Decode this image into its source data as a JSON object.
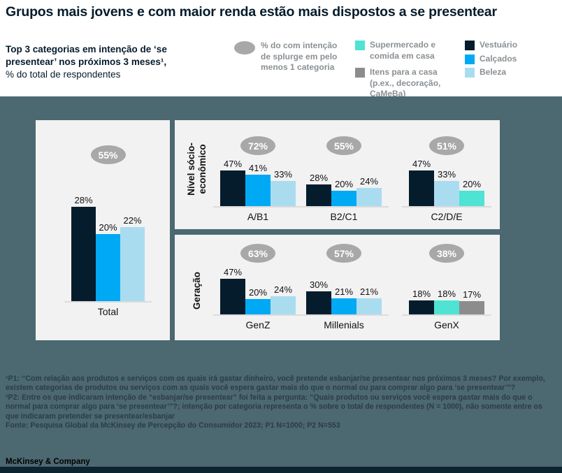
{
  "title": "Grupos mais jovens e com maior renda estão mais dispostos a se presentear",
  "subtitle": {
    "bold": "Top 3 categorias em intenção de ‘se presentear’ nos próximos 3 meses¹,",
    "regular": "% do total de respondentes"
  },
  "palette": {
    "vestuario": "#051c2c",
    "calcados": "#00a9f4",
    "beleza": "#aadcf0",
    "supermercado": "#4fe3d3",
    "itens_casa": "#8c8c8c",
    "bubble": "#a8a8a8",
    "backdrop": "#4c6871",
    "panel": "#f2f2f2"
  },
  "legend": {
    "bubble_label": "% do com intenção de splurge em pelo menos 1 categoria",
    "items": [
      {
        "key": "supermercado",
        "label": "Supermercado e comida em casa"
      },
      {
        "key": "itens_casa",
        "label": "Itens para a casa (p.ex., decoração, CaMeBa)"
      },
      {
        "key": "vestuario",
        "label": "Vestuário"
      },
      {
        "key": "calcados",
        "label": "Calçados"
      },
      {
        "key": "beleza",
        "label": "Beleza"
      }
    ]
  },
  "chart_data": {
    "type": "bar",
    "unit": "%",
    "value_range": [
      0,
      50
    ],
    "grid": false,
    "panels": [
      {
        "name": "total",
        "axis_label": "",
        "groups": [
          {
            "label": "Total",
            "bubble": "55%",
            "bars": [
              {
                "category": "vestuario",
                "value": 28,
                "label": "28%"
              },
              {
                "category": "calcados",
                "value": 20,
                "label": "20%"
              },
              {
                "category": "beleza",
                "value": 22,
                "label": "22%"
              }
            ]
          }
        ]
      },
      {
        "name": "nivel",
        "axis_label": "Nível sócio-\neconômico",
        "groups": [
          {
            "label": "A/B1",
            "bubble": "72%",
            "bars": [
              {
                "category": "vestuario",
                "value": 47,
                "label": "47%"
              },
              {
                "category": "calcados",
                "value": 41,
                "label": "41%"
              },
              {
                "category": "beleza",
                "value": 33,
                "label": "33%"
              }
            ]
          },
          {
            "label": "B2/C1",
            "bubble": "55%",
            "bars": [
              {
                "category": "vestuario",
                "value": 28,
                "label": "28%"
              },
              {
                "category": "calcados",
                "value": 20,
                "label": "20%"
              },
              {
                "category": "beleza",
                "value": 24,
                "label": "24%"
              }
            ]
          },
          {
            "label": "C2/D/E",
            "bubble": "51%",
            "bars": [
              {
                "category": "vestuario",
                "value": 47,
                "label": "47%"
              },
              {
                "category": "beleza",
                "value": 33,
                "label": "33%"
              },
              {
                "category": "supermercado",
                "value": 20,
                "label": "20%"
              }
            ]
          }
        ]
      },
      {
        "name": "geracao",
        "axis_label": "Geração",
        "groups": [
          {
            "label": "GenZ",
            "bubble": "63%",
            "bars": [
              {
                "category": "vestuario",
                "value": 47,
                "label": "47%"
              },
              {
                "category": "calcados",
                "value": 20,
                "label": "20%"
              },
              {
                "category": "beleza",
                "value": 24,
                "label": "24%"
              }
            ]
          },
          {
            "label": "Millenials",
            "bubble": "57%",
            "bars": [
              {
                "category": "vestuario",
                "value": 30,
                "label": "30%"
              },
              {
                "category": "calcados",
                "value": 21,
                "label": "21%"
              },
              {
                "category": "beleza",
                "value": 21,
                "label": "21%"
              }
            ]
          },
          {
            "label": "GenX",
            "bubble": "38%",
            "bars": [
              {
                "category": "vestuario",
                "value": 18,
                "label": "18%"
              },
              {
                "category": "supermercado",
                "value": 18,
                "label": "18%"
              },
              {
                "category": "itens_casa",
                "value": 17,
                "label": "17%"
              }
            ]
          }
        ]
      }
    ]
  },
  "footnotes": {
    "note1": "¹P1: “Com relação aos produtos e serviços com os quais irá gastar dinheiro, você pretende esbanjar/se presentear nos próximos 3 meses? Por exemplo, existem categorias de produtos ou serviços com as quais você espera gastar mais do que o normal ou para comprar algo para ‘se presentear’”?",
    "note2": "²P2: Entre os que indicaram intenção de “esbanjar/se presentear” foi feita a pergunta: “Quais produtos ou serviços você espera gastar mais do que o normal para comprar algo para ‘se presentear’”?; intenção por categoria representa o % sobre o total de respondentes (N = 1000), não somente entre os que indicaram pretender se presentear/esbanjar",
    "source": "Fonte: Pesquisa Global da McKinsey de Percepção do Consumidor 2023; P1 N=1000; P2 N=553"
  },
  "footer": {
    "brand": "McKinsey & Company"
  }
}
